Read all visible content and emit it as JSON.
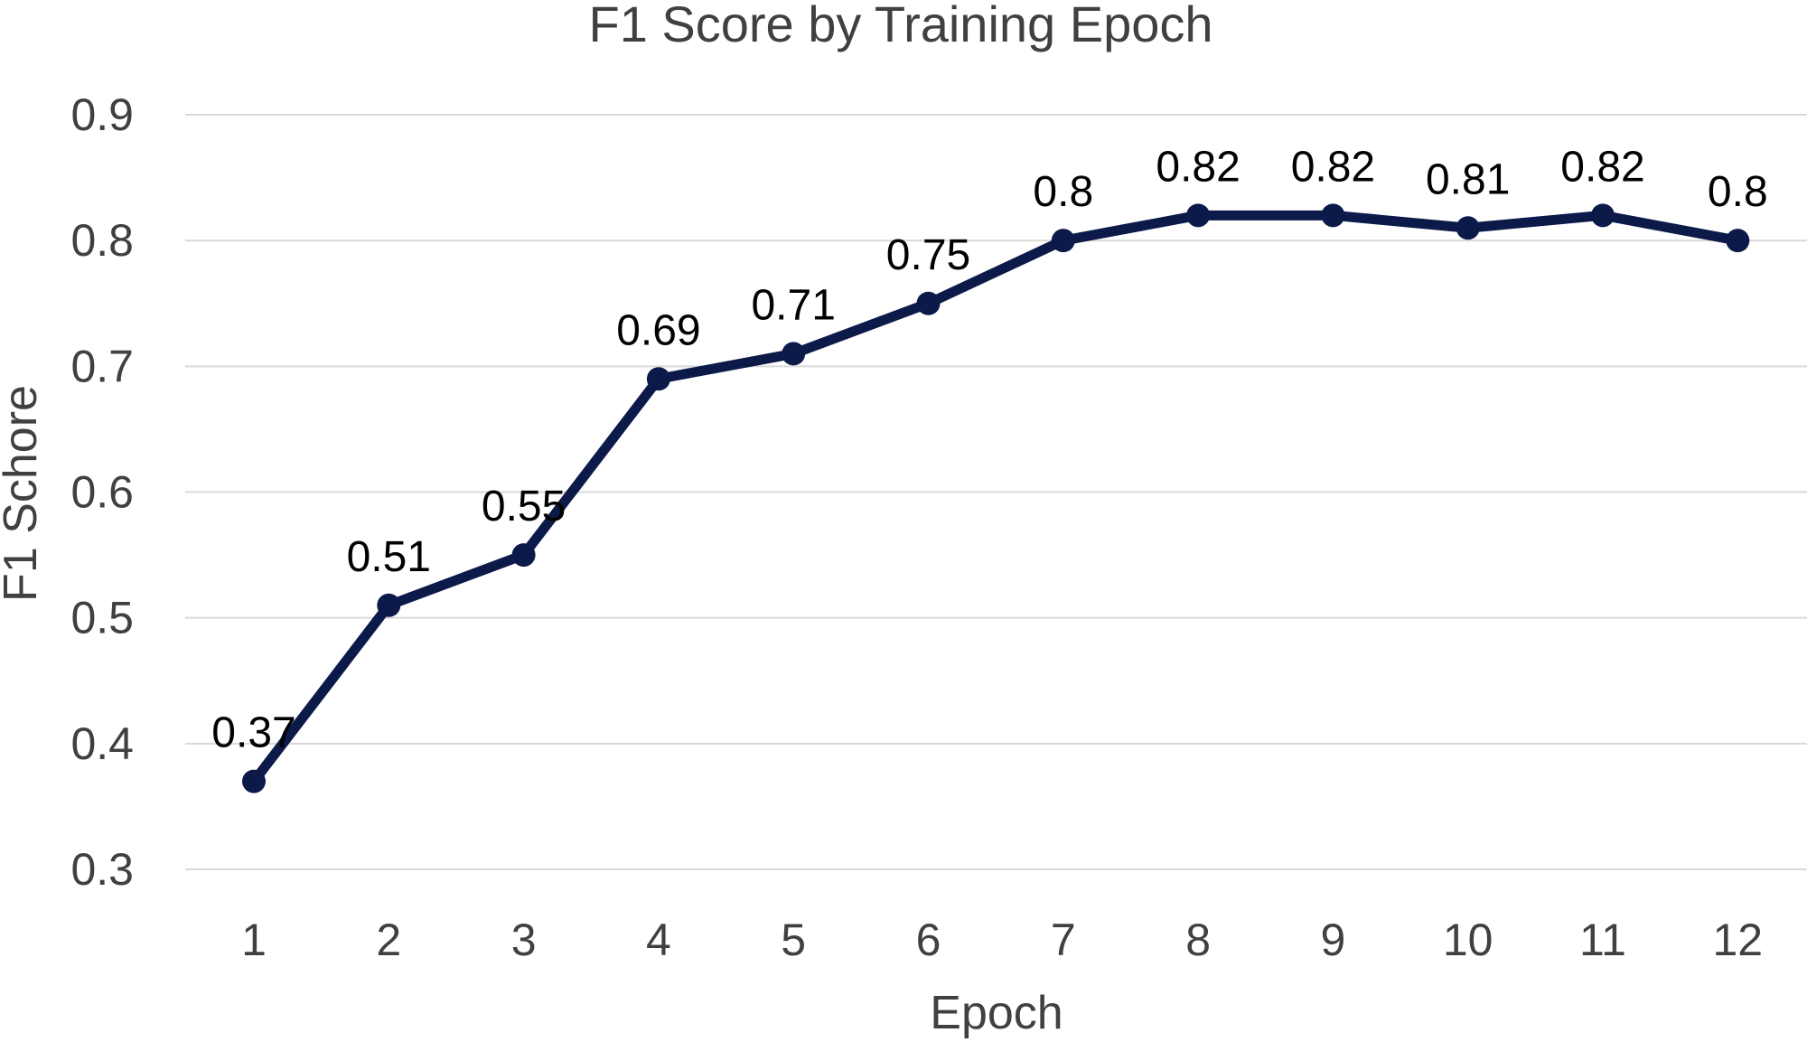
{
  "chart_data": {
    "type": "line",
    "title": "F1 Score by Training Epoch",
    "xlabel": "Epoch",
    "ylabel": "F1 Schore",
    "categories": [
      "1",
      "2",
      "3",
      "4",
      "5",
      "6",
      "7",
      "8",
      "9",
      "10",
      "11",
      "12"
    ],
    "series": [
      {
        "name": "F1 Score",
        "values": [
          0.37,
          0.51,
          0.55,
          0.69,
          0.71,
          0.75,
          0.8,
          0.82,
          0.82,
          0.81,
          0.82,
          0.8
        ],
        "labels": [
          "0.37",
          "0.51",
          "0.55",
          "0.69",
          "0.71",
          "0.75",
          "0.8",
          "0.82",
          "0.82",
          "0.81",
          "0.82",
          "0.8"
        ]
      }
    ],
    "ylim": [
      0.3,
      0.9
    ],
    "yticks": [
      "0.3",
      "0.4",
      "0.5",
      "0.6",
      "0.7",
      "0.8",
      "0.9"
    ],
    "grid": true,
    "legend": "none",
    "line_color": "#0c1a4a",
    "grid_color": "#d9d9d9",
    "text_color": "#404040"
  }
}
